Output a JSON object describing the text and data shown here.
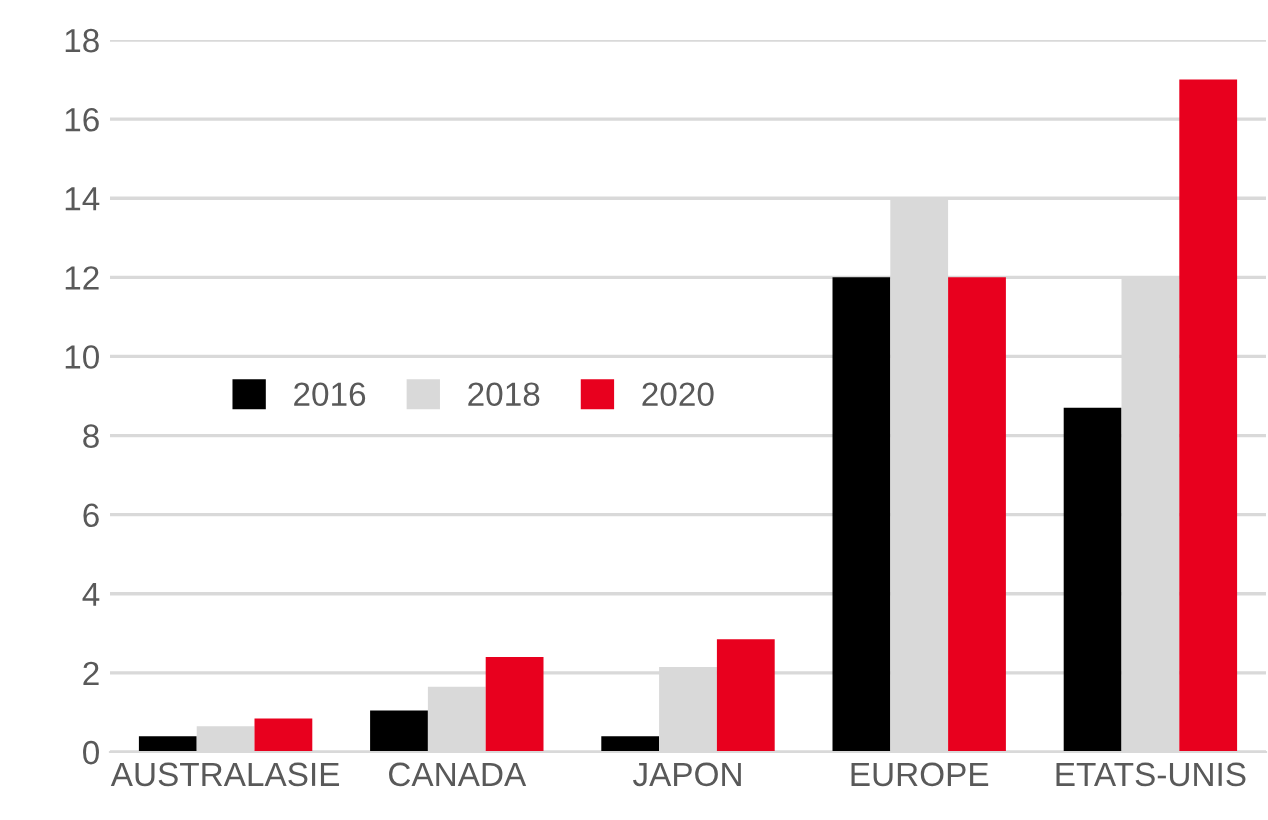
{
  "chart_data": {
    "type": "bar",
    "categories": [
      "AUSTRALASIE",
      "CANADA",
      "JAPON",
      "EUROPE",
      "ETATS-UNIS"
    ],
    "series": [
      {
        "name": "2016",
        "color": "#000000",
        "values": [
          0.4,
          1.05,
          0.4,
          12,
          8.7
        ]
      },
      {
        "name": "2018",
        "color": "#d9d9d9",
        "values": [
          0.65,
          1.65,
          2.15,
          14,
          12
        ]
      },
      {
        "name": "2020",
        "color": "#e8001e",
        "values": [
          0.85,
          2.4,
          2.85,
          12,
          17
        ]
      }
    ],
    "ylim": [
      0,
      18
    ],
    "yticks": [
      0,
      2,
      4,
      6,
      8,
      10,
      12,
      14,
      16,
      18
    ],
    "grid": "y",
    "legend": "center left"
  }
}
